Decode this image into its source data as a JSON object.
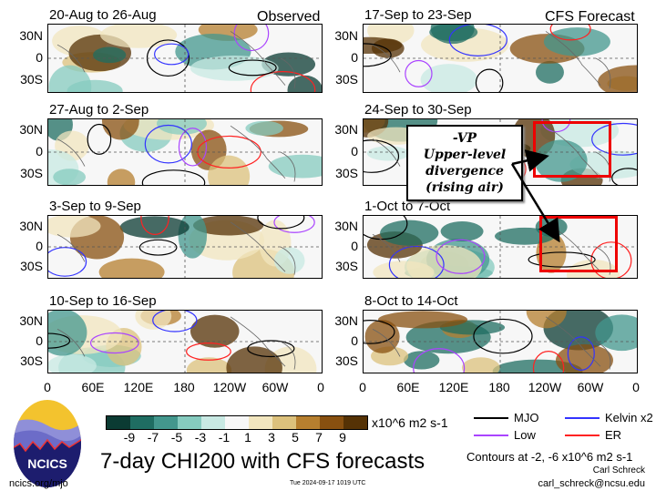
{
  "title": "7-day CHI200 with CFS forecasts",
  "observed_label": "Observed",
  "forecast_label": "CFS Forecast",
  "panels_left": [
    {
      "title": "20-Aug to 26-Aug"
    },
    {
      "title": "27-Aug to 2-Sep"
    },
    {
      "title": "3-Sep to 9-Sep"
    },
    {
      "title": "10-Sep to 16-Sep"
    }
  ],
  "panels_right": [
    {
      "title": "17-Sep to 23-Sep"
    },
    {
      "title": "24-Sep to 30-Sep"
    },
    {
      "title": "1-Oct to 7-Oct"
    },
    {
      "title": "8-Oct to 14-Oct"
    }
  ],
  "lat_labels": [
    "30N",
    "0",
    "30S"
  ],
  "lon_labels": [
    "0",
    "60E",
    "120E",
    "180",
    "120W",
    "60W",
    "0"
  ],
  "colorbar": {
    "colors": [
      "#0b3b33",
      "#1f6d62",
      "#43978d",
      "#86cbbf",
      "#c8e9e3",
      "#f7f7f7",
      "#f2e6bf",
      "#dcc17c",
      "#b67f2f",
      "#885010",
      "#553205"
    ],
    "labels": [
      "-9",
      "-7",
      "-5",
      "-3",
      "-1",
      "1",
      "3",
      "5",
      "7",
      "9"
    ],
    "units": "x10^6 m2 s-1"
  },
  "legend": [
    {
      "label": "MJO",
      "color": "#000000"
    },
    {
      "label": "Kelvin x2",
      "color": "#3333ff"
    },
    {
      "label": "Low",
      "color": "#aa44ff"
    },
    {
      "label": "ER",
      "color": "#ff2222"
    }
  ],
  "contours_note": "Contours at -2, -6 x10^6 m2 s-1",
  "author": "Carl Schreck",
  "email": "carl_schreck@ncsu.edu",
  "website": "ncics.org/mjo",
  "timestamp": "Tue 2024-09-17 1019 UTC",
  "logo_text": "NCICS",
  "callout": {
    "line1": "-VP",
    "line2": "Upper-level",
    "line3": "divergence",
    "line4": "(rising air)"
  }
}
